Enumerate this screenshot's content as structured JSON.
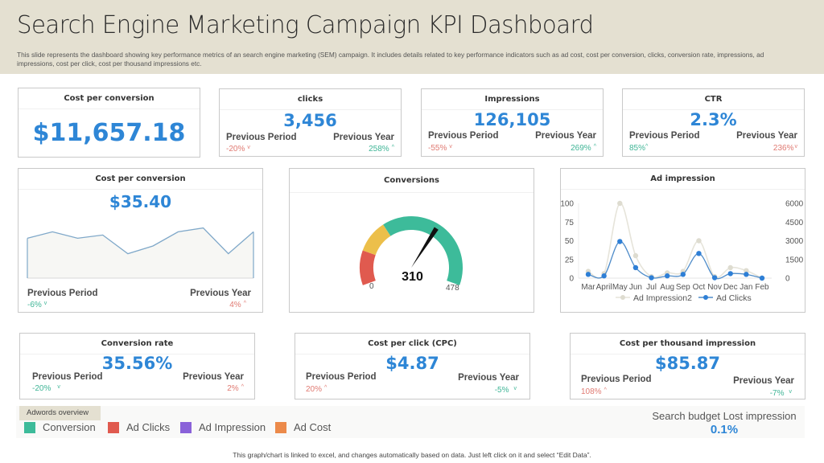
{
  "header": {
    "title": "Search Engine Marketing Campaign KPI Dashboard",
    "subtitle": "This slide represents the dashboard showing key performance metrics of an search engine marketing (SEM) campaign. It includes details related to key performance indicators such as ad cost, cost per conversion, clicks, conversion rate, impressions, ad impressions, cost per click, cost per thousand impressions etc."
  },
  "labels": {
    "previous_period": "Previous Period",
    "previous_year": "Previous Year",
    "up": "^",
    "down": "v"
  },
  "kpis": {
    "cost_per_conversion_total": {
      "title": "Cost per conversion",
      "value": "$11,657.18"
    },
    "clicks": {
      "title": "clicks",
      "value": "3,456",
      "prev_period": "-20%",
      "prev_year": "258%"
    },
    "impressions": {
      "title": "Impressions",
      "value": "126,105",
      "prev_period": "-55%",
      "prev_year": "269%"
    },
    "ctr": {
      "title": "CTR",
      "value": "2.3%",
      "prev_period": "85%",
      "prev_year": "236%"
    },
    "cost_per_conversion": {
      "title": "Cost per conversion",
      "value": "$35.40",
      "prev_period": "-6%",
      "prev_year": "4%"
    },
    "conversion_rate": {
      "title": "Conversion rate",
      "value": "35.56%",
      "prev_period": "-20%",
      "prev_year": "2%"
    },
    "cpc": {
      "title": "Cost per click (CPC)",
      "value": "$4.87",
      "prev_period": "20%",
      "prev_year": "-5%"
    },
    "cpm": {
      "title": "Cost per thousand impression",
      "value": "$85.87",
      "prev_period": "108%",
      "prev_year": "-7%"
    }
  },
  "gauge": {
    "title": "Conversions",
    "value": "310",
    "min": "0",
    "max": "478",
    "numeric_value": 310,
    "numeric_max": 478,
    "colors": [
      "#e05a4f",
      "#ecbf4a",
      "#3dbb9a"
    ]
  },
  "legend": {
    "title": "Adwords overview",
    "items": [
      {
        "label": "Conversion",
        "color": "#3dbb9a"
      },
      {
        "label": "Ad Clicks",
        "color": "#e05a4f"
      },
      {
        "label": "Ad Impression",
        "color": "#8a62d9"
      },
      {
        "label": "Ad Cost",
        "color": "#ec8a4a"
      }
    ]
  },
  "search_budget": {
    "label": "Search budget Lost impression",
    "value": "0.1%"
  },
  "footer": "This graph/chart is linked to excel,  and changes automatically based on data. Just left click on it and select “Edit Data”.",
  "chart_data": [
    {
      "type": "area",
      "title": "Cost per conversion",
      "x": [
        1,
        2,
        3,
        4,
        5,
        6,
        7,
        8,
        9,
        10
      ],
      "values": [
        62,
        72,
        62,
        67,
        38,
        50,
        72,
        78,
        38,
        72
      ],
      "ylim": [
        0,
        100
      ],
      "note": "sparkline, relative values estimated"
    },
    {
      "type": "line",
      "title": "Ad impression",
      "categories": [
        "Mar",
        "April",
        "May",
        "Jun",
        "Jul",
        "Aug",
        "Sep",
        "Oct",
        "Nov",
        "Dec",
        "Jan",
        "Feb"
      ],
      "series": [
        {
          "name": "Ad Impression2",
          "color": "#dedcd0",
          "values": [
            9,
            6,
            100,
            30,
            2,
            7,
            9,
            50,
            2,
            14,
            10,
            0
          ]
        },
        {
          "name": "Ad Clicks",
          "color": "#2e7fd6",
          "values": [
            5,
            3,
            49,
            14,
            0.5,
            3,
            5,
            33,
            0.5,
            6,
            5,
            0
          ]
        }
      ],
      "y_left": {
        "ticks": [
          "0",
          "25",
          "50",
          "75",
          "100"
        ],
        "range": [
          0,
          100
        ]
      },
      "y_right": {
        "ticks": [
          "0",
          "1500",
          "3000",
          "4500",
          "6000"
        ],
        "range": [
          0,
          6000
        ]
      },
      "legend": "bottom",
      "grid": false
    }
  ]
}
